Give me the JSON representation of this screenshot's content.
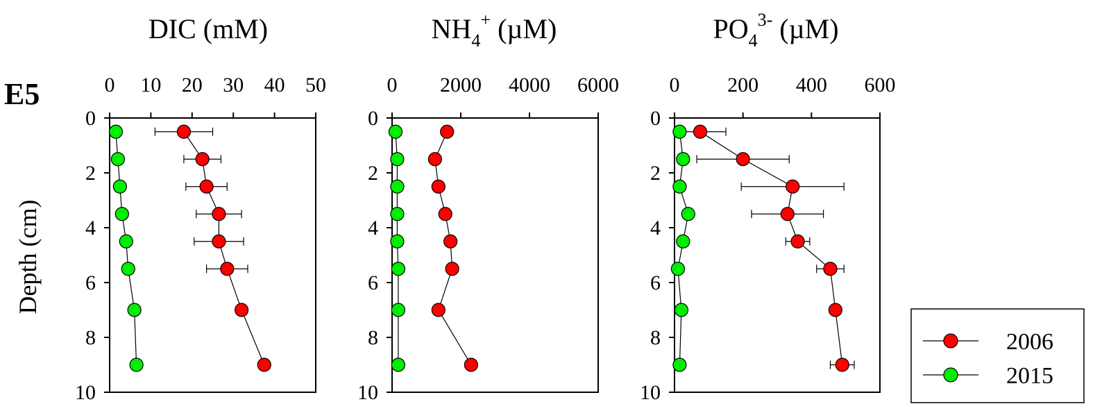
{
  "station_label": "E5",
  "ylabel": "Depth (cm)",
  "colors": {
    "2006": "#ff0000",
    "2015": "#00ee00"
  },
  "legend": {
    "placement": "bottom-right",
    "entries": [
      "2006",
      "2015"
    ]
  },
  "panels": [
    {
      "title_main": "DIC (mM)",
      "xticks": [
        "0",
        "10",
        "20",
        "30",
        "40",
        "50"
      ],
      "yticks": [
        "0",
        "2",
        "4",
        "6",
        "8",
        "10"
      ]
    },
    {
      "title_main": "NH",
      "title_sub": "4",
      "title_sup": "+",
      "title_unit": " (µM)",
      "xticks": [
        "0",
        "2000",
        "4000",
        "6000"
      ],
      "yticks": [
        "0",
        "2",
        "4",
        "6",
        "8",
        "10"
      ]
    },
    {
      "title_main": "PO",
      "title_sub": "4",
      "title_sup": "3-",
      "title_unit": " (µM)",
      "xticks": [
        "0",
        "200",
        "400",
        "600"
      ],
      "yticks": [
        "0",
        "2",
        "4",
        "6",
        "8",
        "10"
      ]
    }
  ],
  "chart_data": [
    {
      "type": "scatter",
      "title": "DIC (mM)",
      "xlim": [
        0,
        50
      ],
      "ylim": [
        0,
        10
      ],
      "y_inverted": true,
      "ylabel": "Depth (cm)",
      "series": [
        {
          "name": "2006",
          "x": [
            18,
            22.5,
            23.5,
            26.5,
            26.5,
            28.5,
            32,
            37.5
          ],
          "y": [
            0.5,
            1.5,
            2.5,
            3.5,
            4.5,
            5.5,
            7,
            9
          ],
          "err": [
            7,
            4.5,
            5,
            5.5,
            6,
            5,
            0,
            0
          ]
        },
        {
          "name": "2015",
          "x": [
            1.5,
            2,
            2.5,
            3,
            4,
            4.5,
            6,
            6.5
          ],
          "y": [
            0.5,
            1.5,
            2.5,
            3.5,
            4.5,
            5.5,
            7,
            9
          ],
          "err": [
            0,
            0,
            0,
            0,
            0,
            0,
            0,
            0
          ]
        }
      ]
    },
    {
      "type": "scatter",
      "title": "NH4+ (µM)",
      "xlim": [
        0,
        6000
      ],
      "ylim": [
        0,
        10
      ],
      "y_inverted": true,
      "series": [
        {
          "name": "2006",
          "x": [
            1600,
            1250,
            1350,
            1550,
            1700,
            1750,
            1350,
            2300
          ],
          "y": [
            0.5,
            1.5,
            2.5,
            3.5,
            4.5,
            5.5,
            7,
            9
          ],
          "err": [
            0,
            0,
            0,
            0,
            0,
            0,
            0,
            0
          ]
        },
        {
          "name": "2015",
          "x": [
            100,
            150,
            150,
            150,
            150,
            180,
            180,
            180
          ],
          "y": [
            0.5,
            1.5,
            2.5,
            3.5,
            4.5,
            5.5,
            7,
            9
          ],
          "err": [
            0,
            0,
            0,
            0,
            0,
            0,
            0,
            0
          ]
        }
      ]
    },
    {
      "type": "scatter",
      "title": "PO43- (µM)",
      "xlim": [
        0,
        600
      ],
      "ylim": [
        0,
        10
      ],
      "y_inverted": true,
      "series": [
        {
          "name": "2006",
          "x": [
            75,
            200,
            345,
            330,
            360,
            455,
            470,
            490
          ],
          "y": [
            0.5,
            1.5,
            2.5,
            3.5,
            4.5,
            5.5,
            7,
            9
          ],
          "err": [
            75,
            135,
            150,
            105,
            35,
            40,
            0,
            35
          ]
        },
        {
          "name": "2015",
          "x": [
            15,
            25,
            15,
            40,
            25,
            10,
            20,
            15
          ],
          "y": [
            0.5,
            1.5,
            2.5,
            3.5,
            4.5,
            5.5,
            7,
            9
          ],
          "err": [
            0,
            0,
            0,
            0,
            0,
            0,
            0,
            0
          ]
        }
      ]
    }
  ]
}
